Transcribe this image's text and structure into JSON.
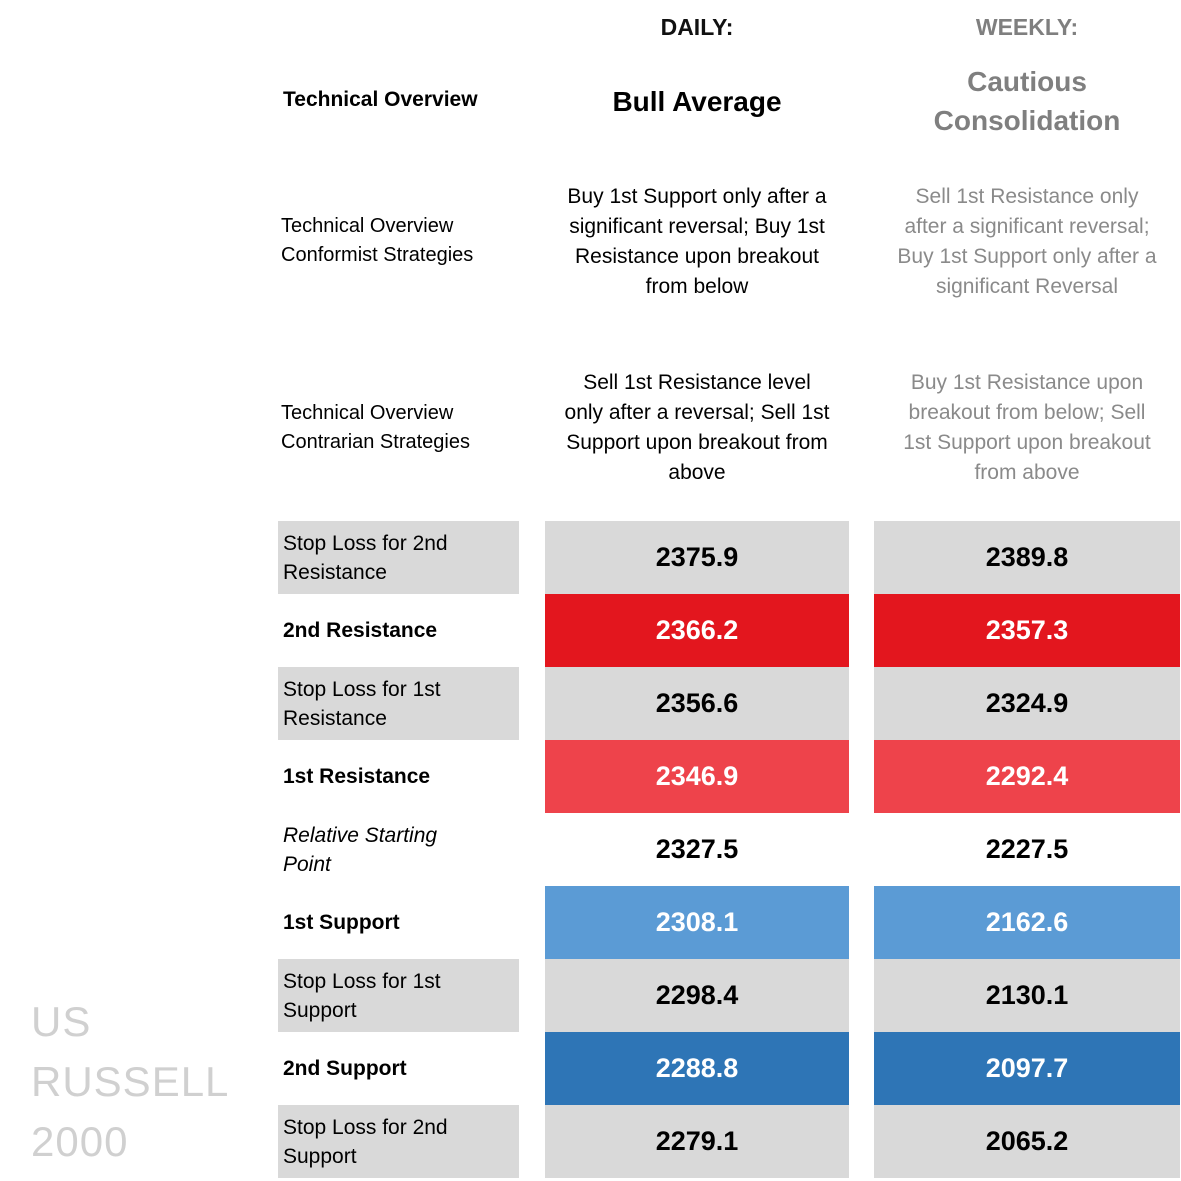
{
  "columns": {
    "daily_header": "DAILY:",
    "weekly_header": "WEEKLY:"
  },
  "overview": {
    "label": "Technical Overview",
    "daily": "Bull Average",
    "weekly_line1": "Cautious",
    "weekly_line2": "Consolidation"
  },
  "conformist": {
    "label_line1": "Technical Overview",
    "label_line2": "Conformist Strategies",
    "daily": [
      "Buy 1st Support only after a",
      "significant reversal; Buy 1st",
      "Resistance upon breakout",
      "from below"
    ],
    "weekly": [
      "Sell 1st Resistance only",
      "after a significant reversal;",
      "Buy 1st Support only after a",
      "significant Reversal"
    ]
  },
  "contrarian": {
    "label_line1": "Technical Overview",
    "label_line2": "Contrarian Strategies",
    "daily": [
      "Sell 1st Resistance level",
      "only after a reversal; Sell 1st",
      "Support upon breakout from",
      "above"
    ],
    "weekly": [
      "Buy 1st Resistance upon",
      "breakout from below; Sell",
      "1st Support upon breakout",
      "from above"
    ]
  },
  "levels": [
    {
      "label_line1": "Stop Loss for 2nd",
      "label_line2": "Resistance",
      "daily": "2375.9",
      "weekly": "2389.8"
    },
    {
      "label_line1": "2nd Resistance",
      "label_line2": "",
      "daily": "2366.2",
      "weekly": "2357.3"
    },
    {
      "label_line1": "Stop Loss for 1st",
      "label_line2": "Resistance",
      "daily": "2356.6",
      "weekly": "2324.9"
    },
    {
      "label_line1": "1st Resistance",
      "label_line2": "",
      "daily": "2346.9",
      "weekly": "2292.4"
    },
    {
      "label_line1": "Relative Starting",
      "label_line2": "Point",
      "daily": "2327.5",
      "weekly": "2227.5"
    },
    {
      "label_line1": "1st Support",
      "label_line2": "",
      "daily": "2308.1",
      "weekly": "2162.6"
    },
    {
      "label_line1": "Stop Loss for 1st",
      "label_line2": "Support",
      "daily": "2298.4",
      "weekly": "2130.1"
    },
    {
      "label_line1": "2nd Support",
      "label_line2": "",
      "daily": "2288.8",
      "weekly": "2097.7"
    },
    {
      "label_line1": "Stop Loss for 2nd",
      "label_line2": "Support",
      "daily": "2279.1",
      "weekly": "2065.2"
    }
  ],
  "instrument": {
    "line1": "US",
    "line2": "RUSSELL",
    "line3": "2000"
  },
  "colors": {
    "gray": "#d9d9d9",
    "resistance_2": "#e3161e",
    "resistance_1": "#ee434b",
    "support_1": "#5b9bd5",
    "support_2": "#2e75b6"
  }
}
